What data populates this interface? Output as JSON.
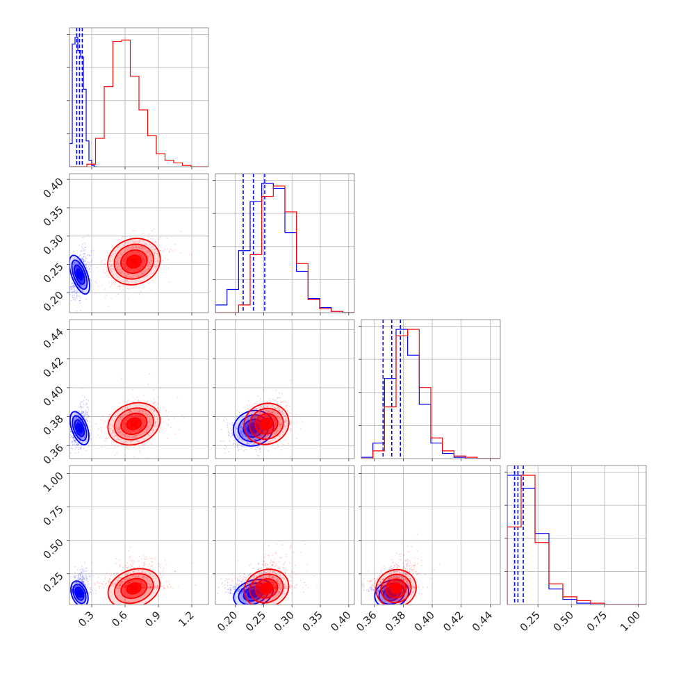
{
  "chart_data": {
    "type": "corner",
    "title": "",
    "xlabel": "",
    "ylabel": "",
    "grid": true,
    "legend": "none",
    "params": [
      {
        "name": "",
        "range": [
          0.1,
          1.35
        ],
        "ticks": [
          0.3,
          0.6,
          0.9,
          1.2
        ],
        "tick_labels": [
          "0.3",
          "0.6",
          "0.9",
          "1.2"
        ]
      },
      {
        "name": "",
        "range": [
          0.165,
          0.41
        ],
        "ticks": [
          0.2,
          0.25,
          0.3,
          0.35,
          0.4
        ],
        "tick_labels": [
          "0.20",
          "0.25",
          "0.30",
          "0.35",
          "0.40"
        ]
      },
      {
        "name": "",
        "range": [
          0.351,
          0.447
        ],
        "ticks": [
          0.36,
          0.38,
          0.4,
          0.42,
          0.44
        ],
        "tick_labels": [
          "0.36",
          "0.38",
          "0.40",
          "0.42",
          "0.44"
        ]
      },
      {
        "name": "",
        "range": [
          0.02,
          1.06
        ],
        "ticks": [
          0.25,
          0.5,
          0.75,
          1.0
        ],
        "tick_labels": [
          "0.25",
          "0.50",
          "0.75",
          "1.00"
        ]
      }
    ],
    "row_tick_labels": {
      "1": [
        "0.20",
        "0.25",
        "0.30",
        "0.35",
        "0.40"
      ],
      "2": [
        "0.36",
        "0.38",
        "0.40",
        "0.42",
        "0.44"
      ],
      "3": [
        "0.25",
        "0.50",
        "0.75",
        "1.00"
      ]
    },
    "series": [
      {
        "color": "#0000ff",
        "means": [
          0.19,
          0.232,
          0.372,
          0.1
        ],
        "sigmas": [
          0.035,
          0.018,
          0.006,
          0.05
        ],
        "quantiles": [
          [
            0.165,
            0.19,
            0.215
          ],
          [
            0.214,
            0.232,
            0.252
          ],
          [
            0.366,
            0.372,
            0.378
          ],
          [
            0.075,
            0.1,
            0.14
          ]
        ],
        "hist": [
          {
            "edges": [
              0.1,
              0.35
            ],
            "counts": [
              0.18,
              0.95,
              1.0,
              0.9,
              0.85,
              0.6,
              0.2,
              0.05,
              0.01,
              0.0
            ]
          },
          {
            "edges": [
              0.165,
              0.41
            ],
            "counts": [
              0.06,
              0.18,
              0.48,
              0.86,
              1.0,
              0.96,
              0.62,
              0.32,
              0.11,
              0.04,
              0.01,
              0.0
            ]
          },
          {
            "edges": [
              0.351,
              0.447
            ],
            "counts": [
              0.01,
              0.12,
              0.62,
              1.0,
              0.8,
              0.42,
              0.12,
              0.04,
              0.01,
              0.0,
              0.0,
              0.0
            ]
          },
          {
            "edges": [
              0.02,
              1.06
            ],
            "counts": [
              1.0,
              0.9,
              0.55,
              0.12,
              0.04,
              0.01,
              0.0,
              0.0,
              0.0,
              0.0
            ]
          }
        ]
      },
      {
        "color": "#ff0000",
        "means": [
          0.68,
          0.255,
          0.375,
          0.14
        ],
        "sigmas": [
          0.12,
          0.02,
          0.007,
          0.07
        ],
        "quantiles": [],
        "hist": [
          {
            "edges": [
              0.1,
              1.35
            ],
            "counts": [
              0.0,
              0.0,
              0.02,
              0.22,
              0.62,
              0.97,
              0.98,
              0.7,
              0.44,
              0.24,
              0.1,
              0.05,
              0.03,
              0.01,
              0.0,
              0.0
            ]
          },
          {
            "edges": [
              0.165,
              0.41
            ],
            "counts": [
              0.0,
              0.0,
              0.06,
              0.45,
              0.9,
              0.98,
              0.78,
              0.38,
              0.1,
              0.03,
              0.01,
              0.0
            ]
          },
          {
            "edges": [
              0.351,
              0.447
            ],
            "counts": [
              0.0,
              0.06,
              0.4,
              0.95,
              1.0,
              0.55,
              0.16,
              0.06,
              0.02,
              0.01,
              0.0,
              0.0
            ]
          },
          {
            "edges": [
              0.02,
              1.06
            ],
            "counts": [
              0.6,
              1.0,
              0.48,
              0.16,
              0.06,
              0.03,
              0.01,
              0.0,
              0.0,
              0.0
            ]
          }
        ]
      }
    ],
    "colors": {
      "blue": "#0000ff",
      "red": "#ff0000",
      "grid": "#b0b0b0",
      "frame": "#777777"
    }
  }
}
